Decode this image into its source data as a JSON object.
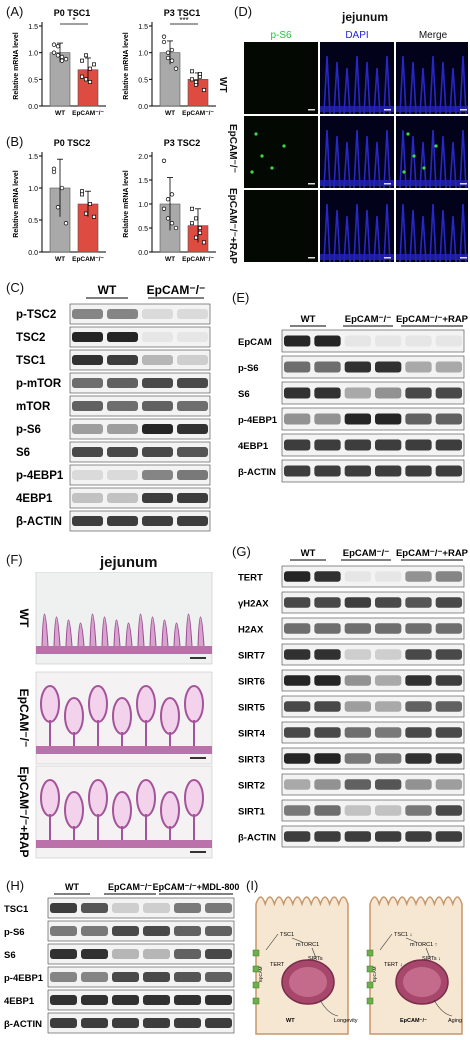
{
  "panels": {
    "A": "(A)",
    "B": "(B)",
    "C": "(C)",
    "D": "(D)",
    "E": "(E)",
    "F": "(F)",
    "G": "(G)",
    "H": "(H)",
    "I": "(I)"
  },
  "charts": {
    "p0tsc1": {
      "title": "P0 TSC1",
      "ylabel": "Relative mRNA level",
      "sig": "*",
      "ticks": [
        "0.0",
        "0.5",
        "1.0",
        "1.5"
      ],
      "cats": [
        "WT",
        "EpCAM⁻/⁻"
      ]
    },
    "p3tsc1": {
      "title": "P3 TSC1",
      "ylabel": "Relative mRNA level",
      "sig": "***",
      "ticks": [
        "0.0",
        "0.5",
        "1.0",
        "1.5"
      ],
      "cats": [
        "WT",
        "EpCAM⁻/⁻"
      ]
    },
    "p0tsc2": {
      "title": "P0 TSC2",
      "ylabel": "Relative mRNA level",
      "ticks": [
        "0.0",
        "0.5",
        "1.0",
        "1.5"
      ],
      "cats": [
        "WT",
        "EpCAM⁻/⁻"
      ]
    },
    "p3tsc2": {
      "title": "P3 TSC2",
      "ylabel": "Relative mRNA level",
      "ticks": [
        "0.0",
        "0.5",
        "1.0",
        "1.5",
        "2.0"
      ],
      "cats": [
        "WT",
        "EpCAM⁻/⁻"
      ]
    }
  },
  "chart_data": [
    {
      "type": "bar",
      "title": "P0 TSC1",
      "ylabel": "Relative mRNA level",
      "categories": [
        "WT",
        "EpCAM-/-"
      ],
      "values": [
        1.0,
        0.68
      ],
      "ylim": [
        0,
        1.5
      ]
    },
    {
      "type": "bar",
      "title": "P3 TSC1",
      "ylabel": "Relative mRNA level",
      "categories": [
        "WT",
        "EpCAM-/-"
      ],
      "values": [
        1.0,
        0.5
      ],
      "ylim": [
        0,
        1.5
      ]
    },
    {
      "type": "bar",
      "title": "P0 TSC2",
      "ylabel": "Relative mRNA level",
      "categories": [
        "WT",
        "EpCAM-/-"
      ],
      "values": [
        1.0,
        0.75
      ],
      "ylim": [
        0,
        1.5
      ]
    },
    {
      "type": "bar",
      "title": "P3 TSC2",
      "ylabel": "Relative mRNA level",
      "categories": [
        "WT",
        "EpCAM-/-"
      ],
      "values": [
        1.0,
        0.55
      ],
      "ylim": [
        0,
        2.0
      ]
    }
  ],
  "D": {
    "title": "jejunum",
    "cols": [
      "p-S6",
      "DAPI",
      "Merge"
    ],
    "col_colors": [
      "#27c23a",
      "#2525d8",
      "#111111"
    ],
    "rows": [
      "WT",
      "EpCAM⁻/⁻",
      "EpCAM⁻/⁻+RAP"
    ]
  },
  "C": {
    "groups": [
      "WT",
      "EpCAM⁻/⁻"
    ],
    "rows": [
      "p-TSC2",
      "TSC2",
      "TSC1",
      "p-mTOR",
      "mTOR",
      "p-S6",
      "S6",
      "p-4EBP1",
      "4EBP1",
      "β-ACTIN"
    ]
  },
  "E": {
    "groups": [
      "WT",
      "EpCAM⁻/⁻",
      "EpCAM⁻/⁻+RAP"
    ],
    "rows": [
      "EpCAM",
      "p-S6",
      "S6",
      "p-4EBP1",
      "4EBP1",
      "β-ACTIN"
    ]
  },
  "F": {
    "title": "jejunum",
    "rows": [
      "WT",
      "EpCAM⁻/⁻",
      "EpCAM⁻/⁻+RAP"
    ]
  },
  "G": {
    "groups": [
      "WT",
      "EpCAM⁻/⁻",
      "EpCAM⁻/⁻+RAP"
    ],
    "rows": [
      "TERT",
      "γH2AX",
      "H2AX",
      "SIRT7",
      "SIRT6",
      "SIRT5",
      "SIRT4",
      "SIRT3",
      "SIRT2",
      "SIRT1",
      "β-ACTIN"
    ]
  },
  "H": {
    "groups": [
      "WT",
      "EpCAM⁻/⁻",
      "EpCAM⁻/⁻+MDL-800"
    ],
    "rows": [
      "TSC1",
      "p-S6",
      "S6",
      "p-4EBP1",
      "4EBP1",
      "β-ACTIN"
    ]
  },
  "I": {
    "left": {
      "membrane": "EpCAM",
      "tsc1": "TSC1",
      "mtorc1": "mTORC1",
      "tert": "TERT",
      "sirts": "SIRTs",
      "cell": "WT",
      "outcome": "Longevity"
    },
    "right": {
      "membrane": "EpCAM",
      "tsc1": "TSC1 ↓",
      "mtorc1": "mTORC1 ↑",
      "tert": "TERT ↓",
      "sirts": "SIRTs ↓",
      "cell": "EpCAM⁻/⁻",
      "outcome": "Aging"
    }
  }
}
